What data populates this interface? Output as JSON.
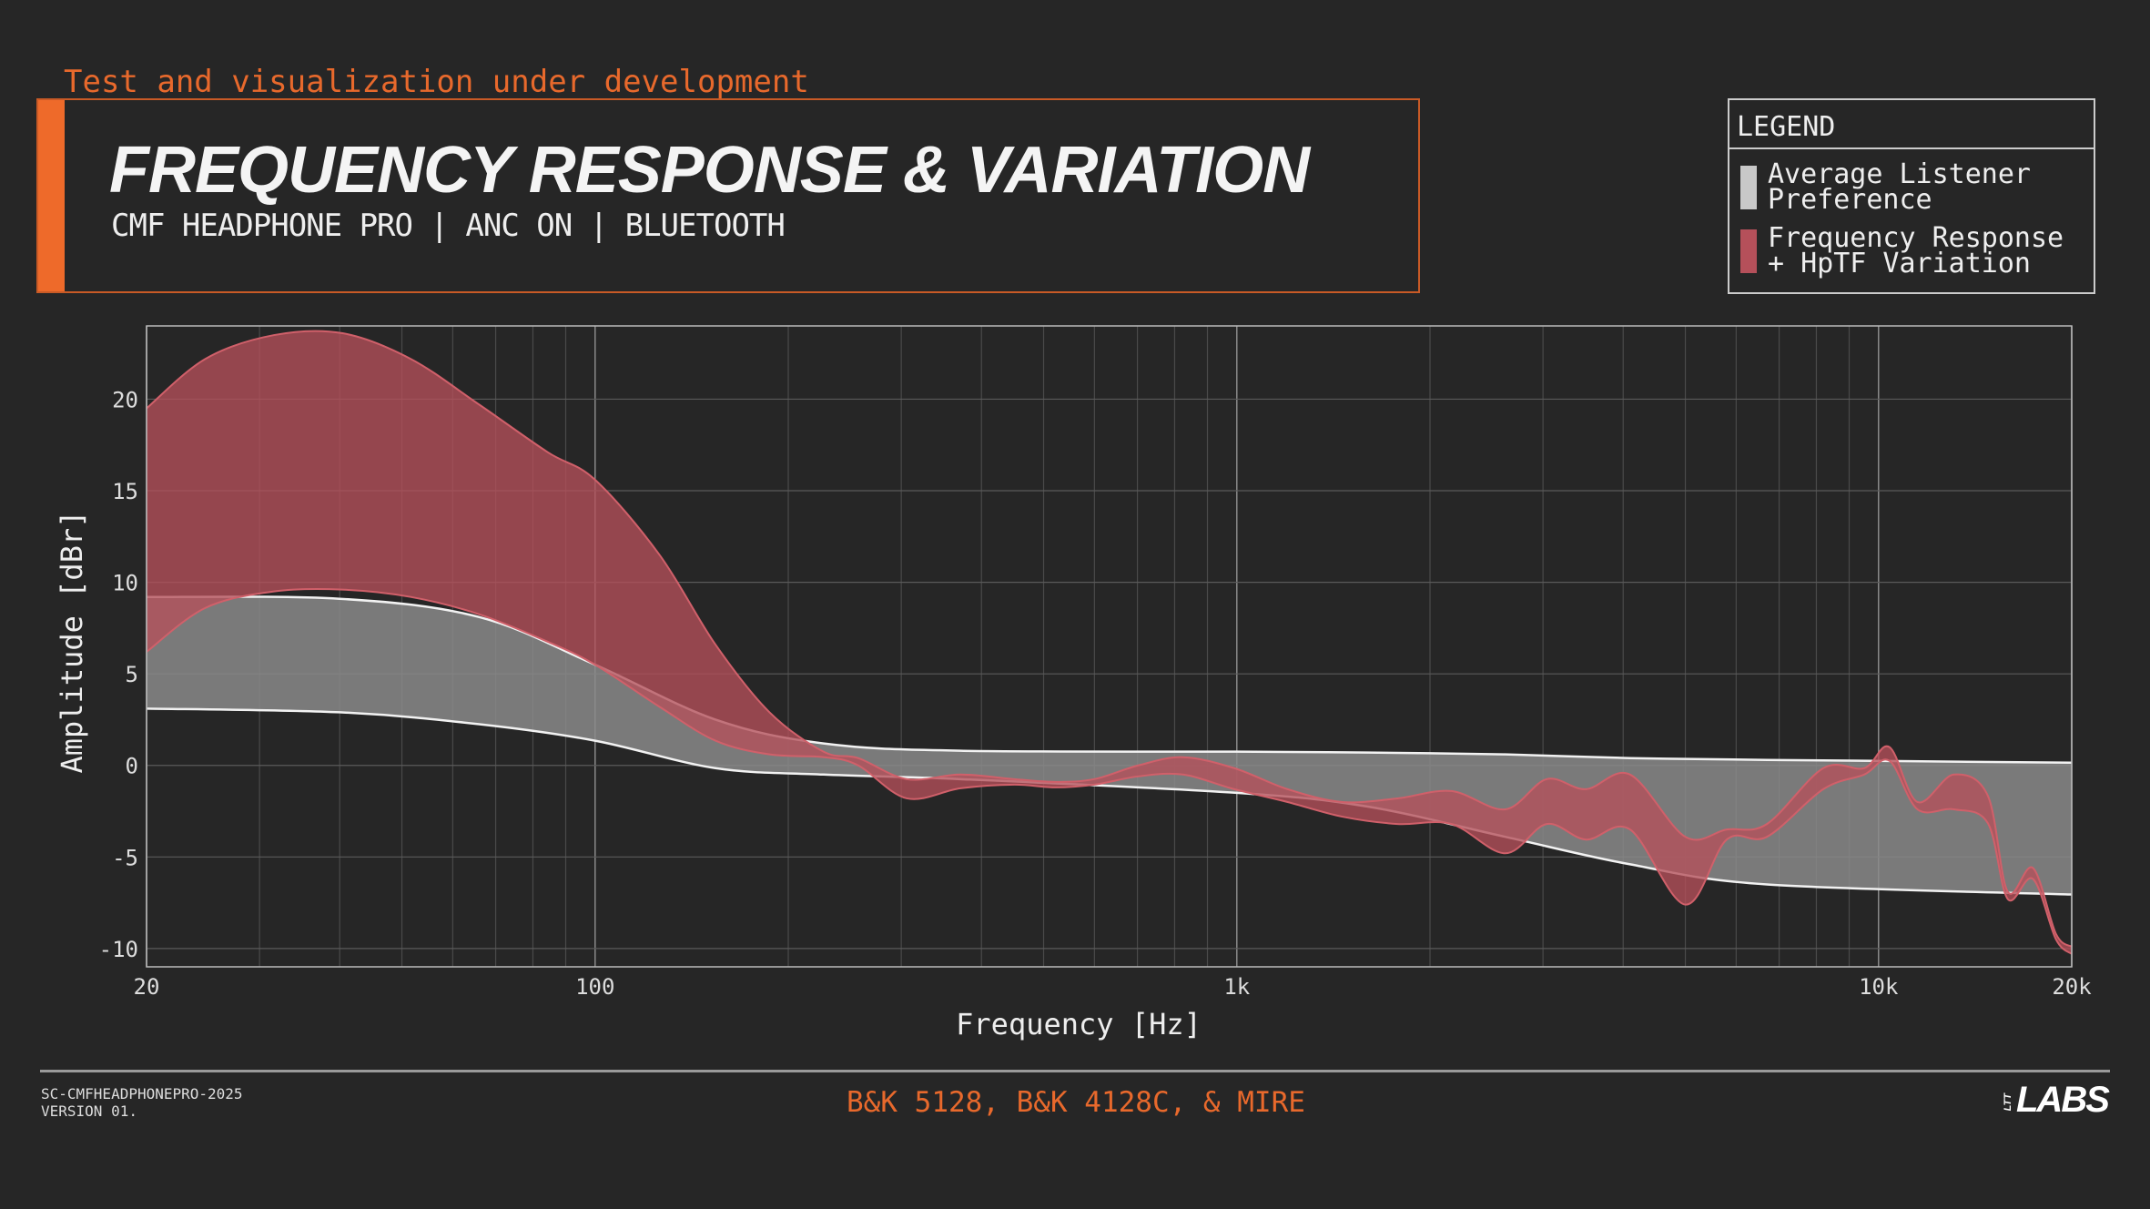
{
  "header": {
    "dev_note": "Test and visualization under development",
    "title": "FREQUENCY RESPONSE & VARIATION",
    "subtitle": "CMF HEADPHONE PRO | ANC ON | BLUETOOTH"
  },
  "legend": {
    "title": "LEGEND",
    "items": [
      {
        "label": "Average Listener\nPreference",
        "color": "#c8c8c8"
      },
      {
        "label": "Frequency Response\n+ HpTF Variation",
        "color": "#b5505a"
      }
    ]
  },
  "footer": {
    "doc_id": "SC-CMFHEADPHONEPRO-2025",
    "version": "VERSION 01.",
    "equipment": "B&K 5128, B&K 4128C, & MIRE",
    "logo": "LTT LABS"
  },
  "chart_data": {
    "type": "area",
    "title": "FREQUENCY RESPONSE & VARIATION",
    "xlabel": "Frequency [Hz]",
    "ylabel": "Amplitude [dBr]",
    "xscale": "log",
    "xlim": [
      20,
      20000
    ],
    "ylim": [
      -11,
      24
    ],
    "grid": true,
    "legend_position": "top-right",
    "x_ticks": [
      20,
      100,
      1000,
      10000,
      20000
    ],
    "x_tick_labels": [
      "20",
      "100",
      "1k",
      "10k",
      "20k"
    ],
    "y_ticks": [
      20,
      15,
      10,
      5,
      0,
      -5,
      -10
    ],
    "y_tick_labels": [
      "20",
      "15",
      "10",
      "5",
      "0",
      "-5",
      "-10"
    ],
    "series": [
      {
        "name": "Average Listener Preference",
        "color": "#8a8a8a",
        "x": [
          20,
          40,
          66,
          100,
          154,
          227,
          371,
          1000,
          1600,
          2620,
          4100,
          6700,
          20000
        ],
        "upper": [
          9.2,
          9.1,
          8.1,
          5.5,
          2.5,
          1.2,
          0.8,
          0.75,
          0.7,
          0.6,
          0.4,
          0.3,
          0.15
        ],
        "lower": [
          3.1,
          2.9,
          2.25,
          1.35,
          -0.15,
          -0.5,
          -0.75,
          -1.5,
          -2.25,
          -3.9,
          -5.4,
          -6.5,
          -7.05
        ]
      },
      {
        "name": "Frequency Response + HpTF Variation",
        "color": "#b5505a",
        "x": [
          20,
          24.7,
          31.6,
          40.4,
          51.6,
          66,
          84.4,
          100,
          126,
          154,
          187,
          227,
          257,
          306,
          371,
          450,
          521,
          600,
          702,
          824,
          991,
          1200,
          1460,
          1780,
          2160,
          2620,
          3040,
          3500,
          4100,
          5000,
          5800,
          6700,
          8200,
          9500,
          10400,
          11500,
          13100,
          14800,
          15900,
          17400,
          18900,
          20000
        ],
        "upper": [
          19.5,
          22.2,
          23.5,
          23.6,
          22.2,
          19.7,
          17.1,
          15.6,
          11.5,
          6.6,
          2.9,
          0.75,
          0.4,
          -0.75,
          -0.5,
          -0.75,
          -0.9,
          -0.75,
          0,
          0.45,
          -0.15,
          -1.3,
          -2.0,
          -1.8,
          -1.4,
          -2.4,
          -0.75,
          -1.3,
          -0.5,
          -3.9,
          -3.5,
          -3.2,
          -0.15,
          -0.15,
          1.0,
          -2.0,
          -0.5,
          -1.65,
          -6.9,
          -5.6,
          -9.2,
          -9.9
        ],
        "lower": [
          6.2,
          8.6,
          9.5,
          9.6,
          9.2,
          8.25,
          6.75,
          5.5,
          3.2,
          1.35,
          0.6,
          0.45,
          0,
          -1.8,
          -1.25,
          -1.05,
          -1.2,
          -1.05,
          -0.6,
          -0.5,
          -1.3,
          -2.0,
          -2.8,
          -3.2,
          -3.2,
          -4.8,
          -3.2,
          -4.05,
          -3.5,
          -7.6,
          -4.05,
          -3.9,
          -1.3,
          -0.5,
          0.25,
          -2.4,
          -2.4,
          -3.15,
          -7.3,
          -6.2,
          -9.5,
          -10.3
        ]
      }
    ]
  }
}
